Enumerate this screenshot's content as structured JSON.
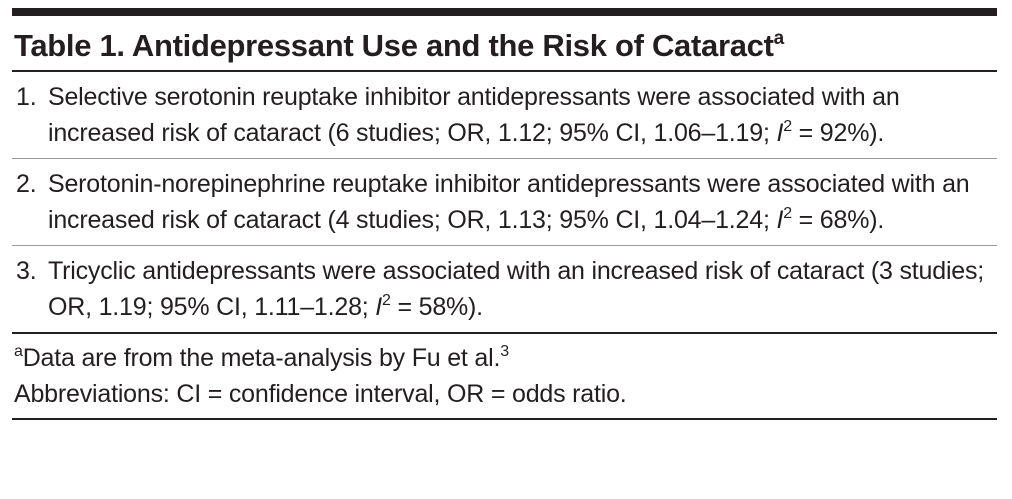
{
  "table": {
    "title": "Table 1. Antidepressant Use and the Risk of Cataract",
    "title_note": "a",
    "items": [
      {
        "number": "1.",
        "text": "Selective serotonin reuptake inhibitor antidepressants were associated with an increased risk of cataract (6 studies; OR, 1.12; 95% CI, 1.06–1.19; ",
        "stat_symbol": "I",
        "stat_exponent": "2",
        "stat_value": " = 92%)."
      },
      {
        "number": "2.",
        "text": "Serotonin-norepinephrine reuptake inhibitor antidepressants were associated with an increased risk of cataract (4 studies; OR, 1.13; 95% CI, 1.04–1.24; ",
        "stat_symbol": "I",
        "stat_exponent": "2",
        "stat_value": " = 68%)."
      },
      {
        "number": "3.",
        "text": "Tricyclic antidepressants were associated with an increased risk of cataract (3 studies; OR, 1.19; 95% CI, 1.11–1.28; ",
        "stat_symbol": "I",
        "stat_exponent": "2",
        "stat_value": " = 58%)."
      }
    ],
    "footnote": {
      "mark": "a",
      "text": "Data are from the meta-analysis by Fu et al.",
      "reference": "3"
    },
    "abbreviations": "Abbreviations: CI = confidence interval, OR = odds ratio."
  }
}
